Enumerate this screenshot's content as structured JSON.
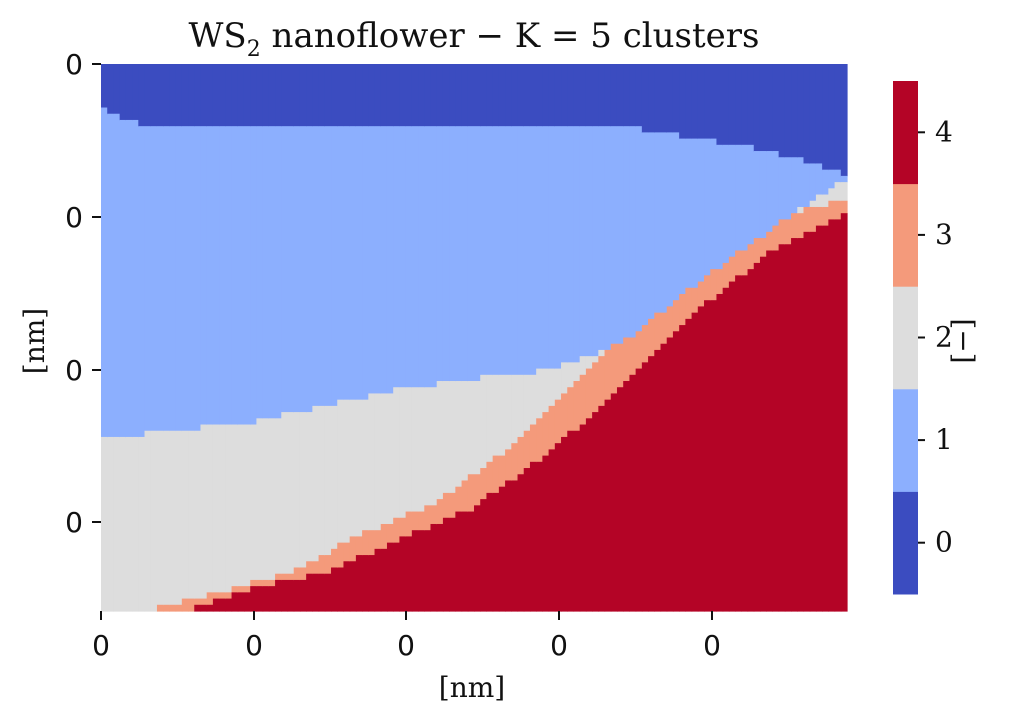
{
  "chart_data": {
    "type": "heatmap",
    "title_main": "WS",
    "title_sub": "2",
    "title_rest": " nanoflower − K = 5 clusters",
    "xlabel": "[nm]",
    "ylabel": "[nm]",
    "x_tick_labels": [
      "0",
      "0",
      "0",
      "0",
      "0"
    ],
    "y_tick_labels": [
      "0",
      "0",
      "0",
      "0"
    ],
    "colorbar": {
      "label": "[−]",
      "ticks": [
        "0",
        "1",
        "2",
        "3",
        "4"
      ],
      "range": [
        -0.5,
        4.5
      ]
    },
    "cluster_colors": [
      "#3b4cc0",
      "#8caffe",
      "#dddddd",
      "#f49a7b",
      "#b40426"
    ],
    "grid_cols": 120,
    "grid_rows": 88,
    "boundaries": {
      "description_free": true,
      "top_edge_c0_c1": [
        [
          0,
          0.08
        ],
        [
          0.06,
          0.115
        ],
        [
          0.2,
          0.115
        ],
        [
          0.7,
          0.115
        ],
        [
          0.8,
          0.135
        ],
        [
          0.9,
          0.16
        ],
        [
          0.97,
          0.19
        ],
        [
          1.0,
          0.205
        ]
      ],
      "c1_c2": [
        [
          0,
          0.685
        ],
        [
          0.1,
          0.67
        ],
        [
          0.2,
          0.655
        ],
        [
          0.3,
          0.625
        ],
        [
          0.4,
          0.595
        ],
        [
          0.5,
          0.575
        ],
        [
          0.6,
          0.56
        ],
        [
          0.7,
          0.51
        ],
        [
          0.8,
          0.4
        ],
        [
          0.9,
          0.3
        ],
        [
          1.0,
          0.21
        ]
      ],
      "c2_c3": [
        [
          0.06,
          1.0
        ],
        [
          0.15,
          0.97
        ],
        [
          0.25,
          0.93
        ],
        [
          0.35,
          0.86
        ],
        [
          0.45,
          0.8
        ],
        [
          0.55,
          0.7
        ],
        [
          0.65,
          0.56
        ],
        [
          0.75,
          0.43
        ],
        [
          0.85,
          0.32
        ],
        [
          0.95,
          0.26
        ],
        [
          1.0,
          0.25
        ]
      ],
      "c3_c4": [
        [
          0.11,
          1.0
        ],
        [
          0.2,
          0.96
        ],
        [
          0.3,
          0.93
        ],
        [
          0.4,
          0.87
        ],
        [
          0.5,
          0.81
        ],
        [
          0.6,
          0.71
        ],
        [
          0.7,
          0.59
        ],
        [
          0.8,
          0.45
        ],
        [
          0.9,
          0.34
        ],
        [
          1.0,
          0.27
        ]
      ]
    }
  }
}
